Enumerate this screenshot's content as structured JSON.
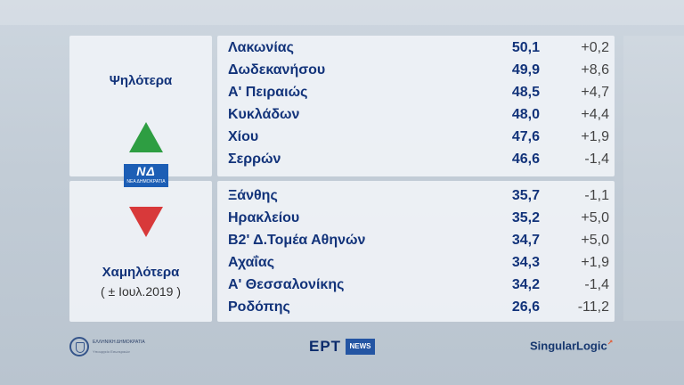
{
  "left": {
    "higher_label": "Ψηλότερα",
    "lower_label": "Χαμηλότερα",
    "lower_note": "( ± Ιουλ.2019 )",
    "up_icon": "green-up-triangle",
    "down_icon": "red-down-triangle",
    "up_color": "#2e9e42",
    "down_color": "#d8393a",
    "party_logo": {
      "main": "ΝΔ",
      "sub": "ΝΕΑ ΔΗΜΟΚΡΑΤΙΑ"
    }
  },
  "higher": [
    {
      "name": "Λακωνίας",
      "value": "50,1",
      "change": "+0,2"
    },
    {
      "name": "Δωδεκανήσου",
      "value": "49,9",
      "change": "+8,6"
    },
    {
      "name": "Α' Πειραιώς",
      "value": "48,5",
      "change": "+4,7"
    },
    {
      "name": "Κυκλάδων",
      "value": "48,0",
      "change": "+4,4"
    },
    {
      "name": "Χίου",
      "value": "47,6",
      "change": "+1,9"
    },
    {
      "name": "Σερρών",
      "value": "46,6",
      "change": "-1,4"
    }
  ],
  "lower": [
    {
      "name": "Ξάνθης",
      "value": "35,7",
      "change": "-1,1"
    },
    {
      "name": "Ηρακλείου",
      "value": "35,2",
      "change": "+5,0"
    },
    {
      "name": "Β2' Δ.Τομέα Αθηνών",
      "value": "34,7",
      "change": "+5,0"
    },
    {
      "name": "Αχαΐας",
      "value": "34,3",
      "change": "+1,9"
    },
    {
      "name": "Α' Θεσσαλονίκης",
      "value": "34,2",
      "change": "-1,4"
    },
    {
      "name": "Ροδόπης",
      "value": "26,6",
      "change": "-11,2"
    }
  ],
  "footer": {
    "gov_line1": "ΕΛΛΗΝΙΚΗ ΔΗΜΟΚΡΑΤΙΑ",
    "gov_line2": "Υπουργείο Εσωτερικών",
    "broadcaster": "ΕΡΤ",
    "broadcaster_tag": "NEWS",
    "partner": "SingularLogic"
  }
}
